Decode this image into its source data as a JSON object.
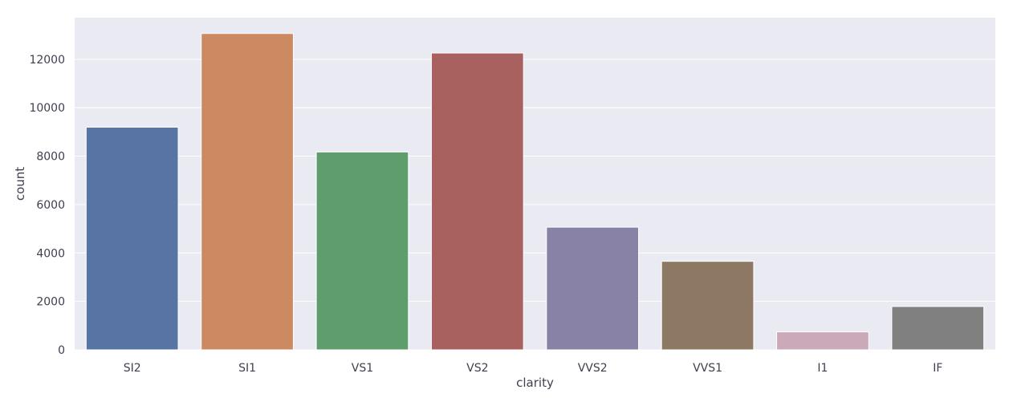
{
  "chart_data": {
    "type": "bar",
    "categories": [
      "SI2",
      "SI1",
      "VS1",
      "VS2",
      "VVS2",
      "VVS1",
      "I1",
      "IF"
    ],
    "values": [
      9194,
      13065,
      8171,
      12258,
      5066,
      3655,
      741,
      1790
    ],
    "colors": [
      "#5874a4",
      "#cd8962",
      "#5f9d6d",
      "#a96160",
      "#8882a6",
      "#8d7963",
      "#cca9b9",
      "#808080"
    ],
    "title": "",
    "xlabel": "clarity",
    "ylabel": "count",
    "yticks": [
      "0",
      "2000",
      "4000",
      "6000",
      "8000",
      "10000",
      "12000"
    ],
    "ylim": [
      0,
      13718
    ],
    "background": "#eaeaf2",
    "grid": true
  }
}
